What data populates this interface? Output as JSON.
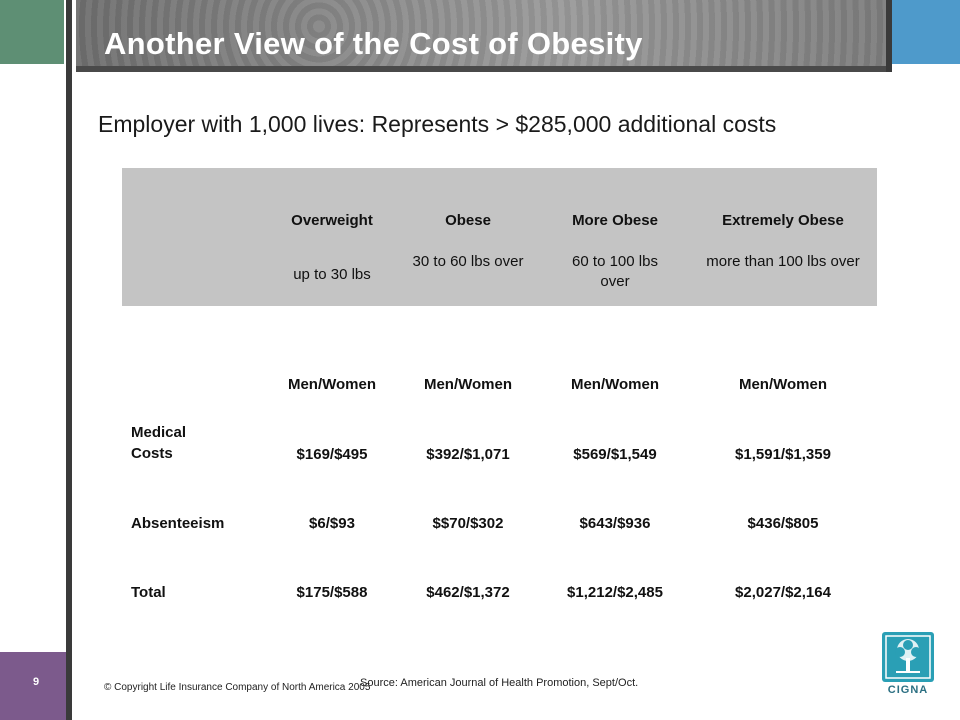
{
  "slide": {
    "title": "Another View of the Cost of Obesity",
    "subtitle": "Employer with 1,000 lives: Represents > $285,000 additional costs",
    "page_number": "9",
    "copyright": "© Copyright Life Insurance Company of North America 2005",
    "source": "Source:  American Journal of Health Promotion, Sept/Oct.",
    "logo_text": "CIGNA"
  },
  "categories": [
    {
      "name": "Overweight",
      "range": "up to 30 lbs"
    },
    {
      "name": "Obese",
      "range": "30 to 60 lbs over"
    },
    {
      "name": "More Obese",
      "range": "60 to 100 lbs over"
    },
    {
      "name": "Extremely Obese",
      "range": "more than 100 lbs over"
    }
  ],
  "column_header": [
    "Men/Women",
    "Men/Women",
    "Men/Women",
    "Men/Women"
  ],
  "rows": [
    {
      "label": "Medical Costs",
      "values": [
        "$169/$495",
        "$392/$1,071",
        "$569/$1,549",
        "$1,591/$1,359"
      ]
    },
    {
      "label": "Absenteeism",
      "values": [
        "$6/$93",
        "$$70/$302",
        "$643/$936",
        "$436/$805"
      ]
    },
    {
      "label": "Total",
      "values": [
        "$175/$588",
        "$462/$1,372",
        "$1,212/$2,485",
        "$2,027/$2,164"
      ]
    }
  ],
  "colors": {
    "green_block": "#5e8f74",
    "blue_block": "#4e9acb",
    "footer_purple": "#7c5a8c",
    "header_grey": "#c4c4c4",
    "logo_teal": "#2a9fb5"
  }
}
